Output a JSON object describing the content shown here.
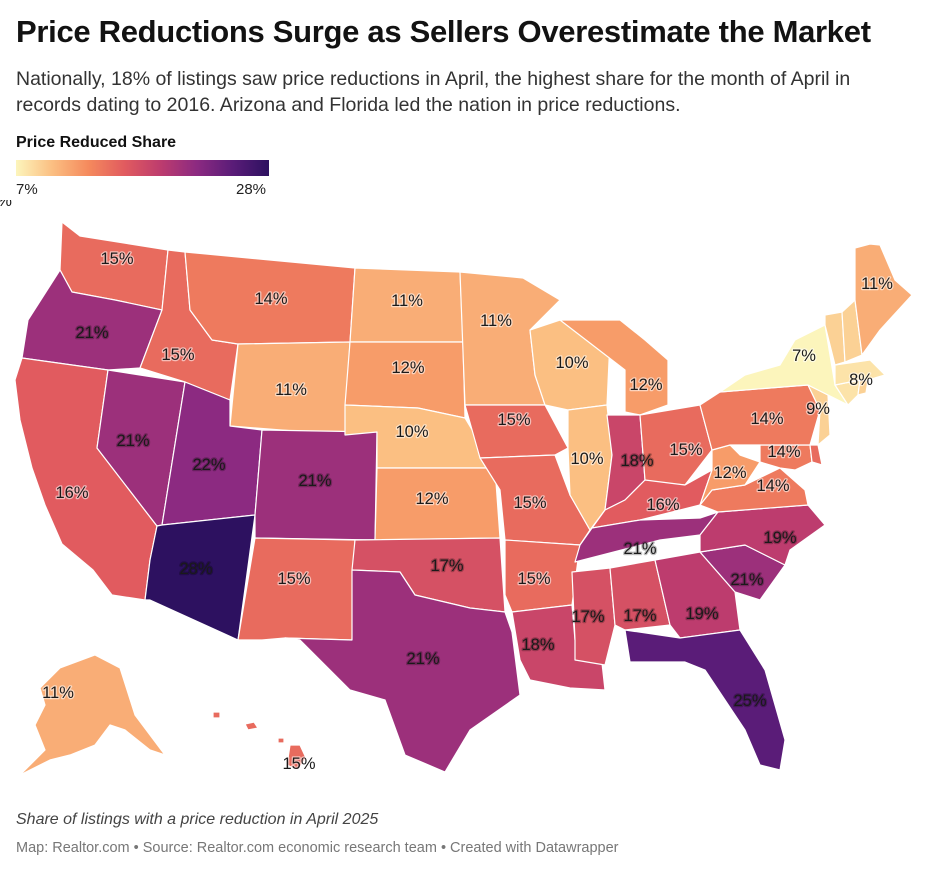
{
  "header": {
    "title": "Price Reductions Surge as Sellers Overestimate the Market",
    "subtitle": "Nationally, 18% of listings saw price reductions in April, the highest share for the month of April in records dating to 2016. Arizona and Florida led the nation in price reductions."
  },
  "legend": {
    "title": "Price Reduced Share",
    "min_label": "7%",
    "max_label": "28%",
    "min_value": 7,
    "max_value": 28,
    "colors": [
      "#fcf5bc",
      "#fbbf82",
      "#f58a5d",
      "#e15b5f",
      "#bd3c6e",
      "#8c2a81",
      "#5a1c78",
      "#2d1160"
    ]
  },
  "map": {
    "metric": "Share of listings with a price reduction in April 2025",
    "states": [
      {
        "code": "WA",
        "value": 15,
        "label": "15%"
      },
      {
        "code": "OR",
        "value": 21,
        "label": "21%"
      },
      {
        "code": "CA",
        "value": 16,
        "label": "16%"
      },
      {
        "code": "NV",
        "value": 21,
        "label": "21%"
      },
      {
        "code": "ID",
        "value": 15,
        "label": "15%"
      },
      {
        "code": "MT",
        "value": 14,
        "label": "14%"
      },
      {
        "code": "WY",
        "value": 11,
        "label": "11%"
      },
      {
        "code": "UT",
        "value": 22,
        "label": "22%"
      },
      {
        "code": "AZ",
        "value": 28,
        "label": "28%"
      },
      {
        "code": "CO",
        "value": 21,
        "label": "21%"
      },
      {
        "code": "NM",
        "value": 15,
        "label": "15%"
      },
      {
        "code": "ND",
        "value": 11,
        "label": "11%"
      },
      {
        "code": "SD",
        "value": 12,
        "label": "12%"
      },
      {
        "code": "NE",
        "value": 10,
        "label": "10%"
      },
      {
        "code": "KS",
        "value": 12,
        "label": "12%"
      },
      {
        "code": "OK",
        "value": 17,
        "label": "17%"
      },
      {
        "code": "TX",
        "value": 21,
        "label": "21%"
      },
      {
        "code": "MN",
        "value": 11,
        "label": "11%"
      },
      {
        "code": "IA",
        "value": 15,
        "label": "15%"
      },
      {
        "code": "MO",
        "value": 15,
        "label": "15%"
      },
      {
        "code": "AR",
        "value": 15,
        "label": "15%"
      },
      {
        "code": "LA",
        "value": 18,
        "label": "18%"
      },
      {
        "code": "WI",
        "value": 10,
        "label": "10%"
      },
      {
        "code": "IL",
        "value": 10,
        "label": "10%"
      },
      {
        "code": "MI",
        "value": 12,
        "label": "12%"
      },
      {
        "code": "IN",
        "value": 18,
        "label": "18%"
      },
      {
        "code": "OH",
        "value": 15,
        "label": "15%"
      },
      {
        "code": "KY",
        "value": 16,
        "label": "16%"
      },
      {
        "code": "TN",
        "value": 21,
        "label": "21%"
      },
      {
        "code": "MS",
        "value": 17,
        "label": "17%"
      },
      {
        "code": "AL",
        "value": 17,
        "label": "17%"
      },
      {
        "code": "GA",
        "value": 19,
        "label": "19%"
      },
      {
        "code": "FL",
        "value": 25,
        "label": "25%"
      },
      {
        "code": "SC",
        "value": 21,
        "label": "21%"
      },
      {
        "code": "NC",
        "value": 19,
        "label": "19%"
      },
      {
        "code": "VA",
        "value": 14,
        "label": "14%"
      },
      {
        "code": "WV",
        "value": 12,
        "label": "12%"
      },
      {
        "code": "MD",
        "value": 14,
        "label": "14%"
      },
      {
        "code": "DE",
        "value": 15
      },
      {
        "code": "PA",
        "value": 14,
        "label": "14%"
      },
      {
        "code": "NJ",
        "value": 9,
        "label": "9%"
      },
      {
        "code": "NY",
        "value": 7,
        "label": "7%"
      },
      {
        "code": "CT",
        "value": 8
      },
      {
        "code": "RI",
        "value": 9
      },
      {
        "code": "MA",
        "value": 8,
        "label": "8%"
      },
      {
        "code": "VT",
        "value": 9,
        "label": "9%"
      },
      {
        "code": "NH",
        "value": 9
      },
      {
        "code": "ME",
        "value": 11,
        "label": "11%"
      },
      {
        "code": "AK",
        "value": 11,
        "label": "11%"
      },
      {
        "code": "HI",
        "value": 15,
        "label": "15%"
      }
    ]
  },
  "footer": {
    "note": "Share of listings with a price reduction in April 2025",
    "credits": "Map: Realtor.com • Source: Realtor.com economic research team • Created with Datawrapper"
  }
}
